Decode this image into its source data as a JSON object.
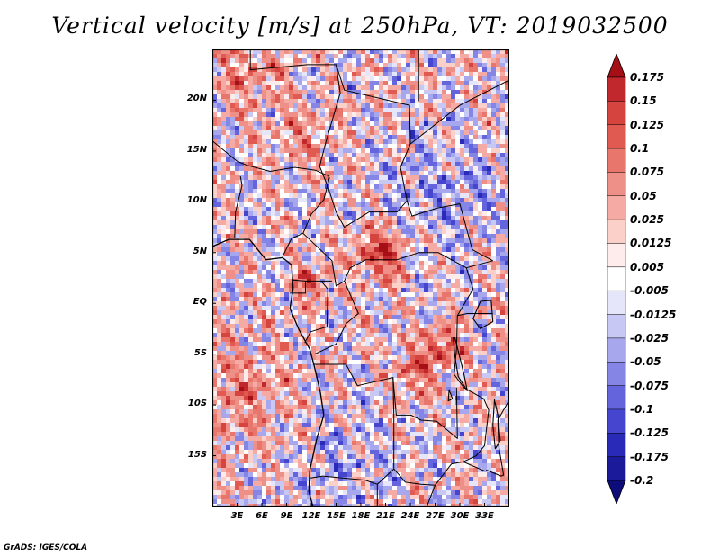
{
  "title": "Vertical velocity [m/s] at 250hPa, VT: 2019032500",
  "credit": "GrADS: IGES/COLA",
  "map": {
    "projection": "latlon",
    "lon_range": [
      0,
      36
    ],
    "lat_range": [
      -20,
      25
    ],
    "lat_ticks": [
      {
        "value": 20,
        "label": "20N"
      },
      {
        "value": 15,
        "label": "15N"
      },
      {
        "value": 10,
        "label": "10N"
      },
      {
        "value": 5,
        "label": "5N"
      },
      {
        "value": 0,
        "label": "EQ"
      },
      {
        "value": -5,
        "label": "5S"
      },
      {
        "value": -10,
        "label": "10S"
      },
      {
        "value": -15,
        "label": "15S"
      }
    ],
    "lon_ticks": [
      {
        "value": 3,
        "label": "3E"
      },
      {
        "value": 6,
        "label": "6E"
      },
      {
        "value": 9,
        "label": "9E"
      },
      {
        "value": 12,
        "label": "12E"
      },
      {
        "value": 15,
        "label": "15E"
      },
      {
        "value": 18,
        "label": "18E"
      },
      {
        "value": 21,
        "label": "21E"
      },
      {
        "value": 24,
        "label": "24E"
      },
      {
        "value": 27,
        "label": "27E"
      },
      {
        "value": 30,
        "label": "30E"
      },
      {
        "value": 33,
        "label": "33E"
      }
    ]
  },
  "colorbar": {
    "labels": [
      "0.175",
      "0.15",
      "0.125",
      "0.1",
      "0.075",
      "0.05",
      "0.025",
      "0.0125",
      "0.005",
      "-0.005",
      "-0.0125",
      "-0.025",
      "-0.05",
      "-0.075",
      "-0.1",
      "-0.125",
      "-0.175",
      "-0.2"
    ],
    "colors": [
      "#a50f15",
      "#c0282d",
      "#d6443f",
      "#e05a52",
      "#e8766c",
      "#ef9088",
      "#f5aba3",
      "#fad0c9",
      "#fdeceb",
      "#ffffff",
      "#e6e6fb",
      "#c8c8f4",
      "#a7a7ee",
      "#8585e6",
      "#6464dc",
      "#4545cf",
      "#2a2ab8",
      "#1a1a9a",
      "#0c0c7a"
    ]
  }
}
